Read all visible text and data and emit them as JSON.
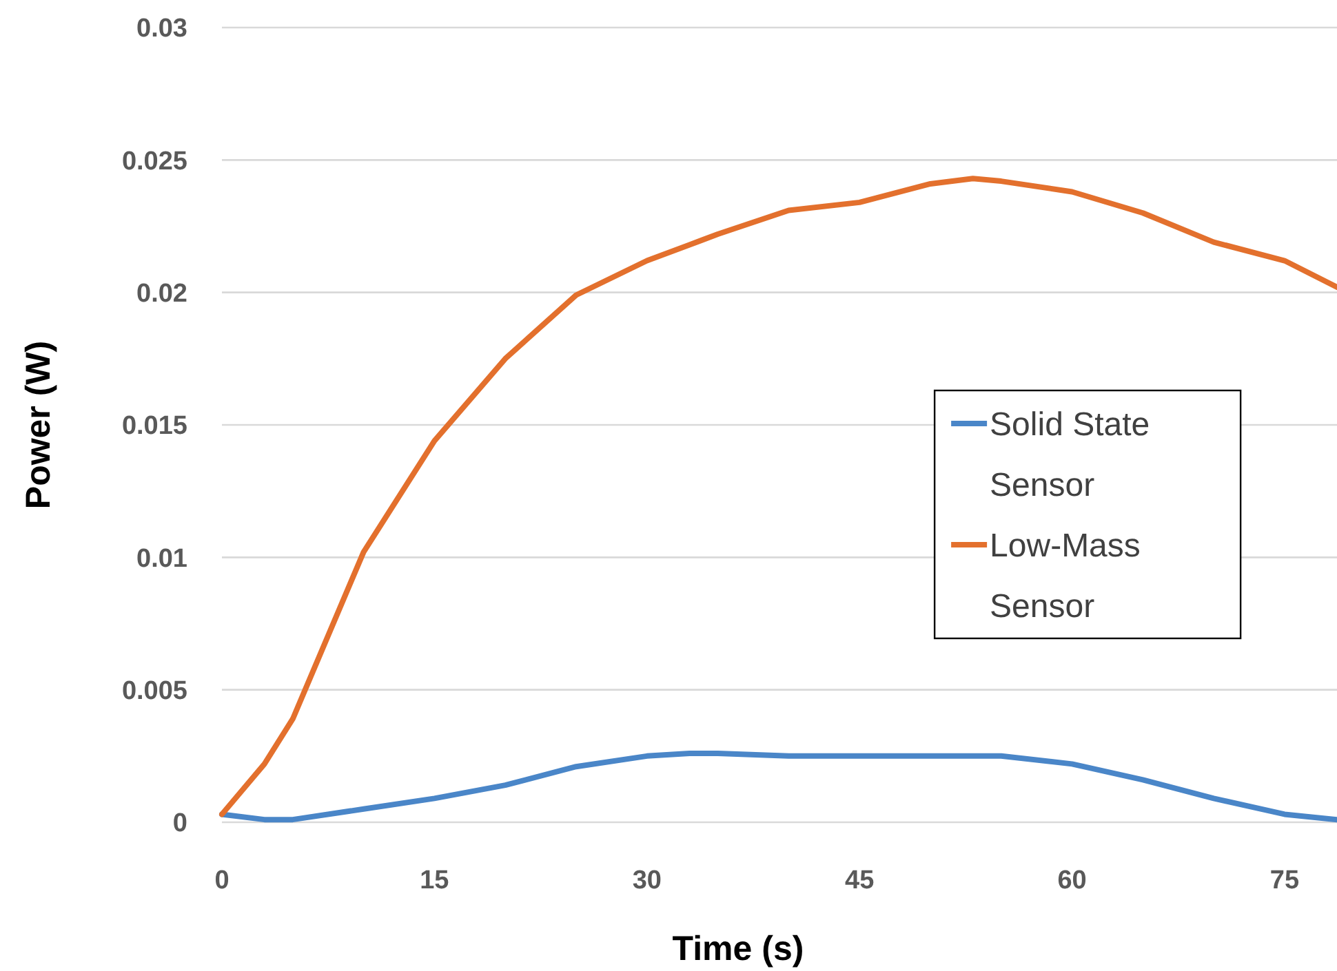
{
  "chart_data": {
    "type": "line",
    "xlabel": "Time (s)",
    "ylabel": "Power (W)",
    "x": [
      0,
      3,
      5,
      10,
      15,
      20,
      25,
      30,
      33,
      35,
      40,
      45,
      50,
      53,
      55,
      60,
      65,
      70,
      75,
      78.7
    ],
    "series": [
      {
        "name": "Solid State Sensor",
        "color": "#4a86c8",
        "values": [
          0.0003,
          0.0001,
          0.0001,
          0.0005,
          0.0009,
          0.0014,
          0.0021,
          0.0025,
          0.0026,
          0.0026,
          0.0025,
          0.0025,
          0.0025,
          0.0025,
          0.0025,
          0.0022,
          0.0016,
          0.0009,
          0.0003,
          0.0001
        ]
      },
      {
        "name": "Low-Mass Sensor",
        "color": "#e3702d",
        "values": [
          0.0003,
          0.0022,
          0.0039,
          0.0102,
          0.0144,
          0.0175,
          0.0199,
          0.0212,
          0.0218,
          0.0222,
          0.0231,
          0.0234,
          0.0241,
          0.0243,
          0.0242,
          0.0238,
          0.023,
          0.0219,
          0.0212,
          0.0202
        ]
      }
    ],
    "xlim": [
      0,
      78.7
    ],
    "xticks": [
      0,
      15,
      30,
      45,
      60,
      75
    ],
    "ylim": [
      0,
      0.03
    ],
    "yticks": [
      0,
      0.005,
      0.01,
      0.015,
      0.02,
      0.025,
      0.03
    ],
    "grid": "y",
    "legend": "right",
    "line_style": "solid",
    "marker": "none"
  }
}
